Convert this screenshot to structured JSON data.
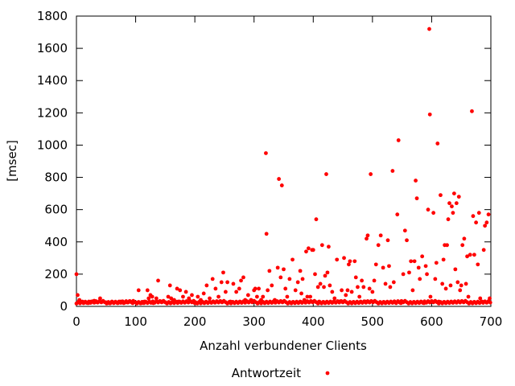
{
  "chart_data": {
    "type": "scatter",
    "xlabel": "Anzahl verbundener Clients",
    "ylabel": "[msec]",
    "xlim": [
      0,
      700
    ],
    "ylim": [
      0,
      1800
    ],
    "x_ticks": [
      0,
      100,
      200,
      300,
      400,
      500,
      600,
      700
    ],
    "y_ticks": [
      0,
      200,
      400,
      600,
      800,
      1000,
      1200,
      1400,
      1600,
      1800
    ],
    "grid": false,
    "legend_position": "bottom-center",
    "colors": {
      "series": "#ff0000",
      "axis": "#000000"
    },
    "series": [
      {
        "name": "Antwortzeit",
        "points": [
          [
            0,
            200
          ],
          [
            2,
            70
          ],
          [
            5,
            40
          ],
          [
            10,
            30
          ],
          [
            15,
            25
          ],
          [
            20,
            20
          ],
          [
            25,
            30
          ],
          [
            30,
            35
          ],
          [
            35,
            25
          ],
          [
            40,
            50
          ],
          [
            45,
            30
          ],
          [
            50,
            25
          ],
          [
            55,
            20
          ],
          [
            60,
            30
          ],
          [
            65,
            25
          ],
          [
            70,
            20
          ],
          [
            75,
            30
          ],
          [
            80,
            20
          ],
          [
            85,
            25
          ],
          [
            90,
            30
          ],
          [
            95,
            20
          ],
          [
            100,
            25
          ],
          [
            105,
            100
          ],
          [
            110,
            20
          ],
          [
            115,
            30
          ],
          [
            120,
            100
          ],
          [
            122,
            50
          ],
          [
            125,
            70
          ],
          [
            128,
            60
          ],
          [
            130,
            20
          ],
          [
            135,
            50
          ],
          [
            138,
            160
          ],
          [
            140,
            30
          ],
          [
            145,
            30
          ],
          [
            150,
            25
          ],
          [
            155,
            60
          ],
          [
            158,
            130
          ],
          [
            160,
            50
          ],
          [
            165,
            40
          ],
          [
            170,
            110
          ],
          [
            172,
            30
          ],
          [
            175,
            100
          ],
          [
            180,
            60
          ],
          [
            185,
            90
          ],
          [
            190,
            50
          ],
          [
            195,
            70
          ],
          [
            200,
            20
          ],
          [
            205,
            60
          ],
          [
            210,
            40
          ],
          [
            215,
            80
          ],
          [
            220,
            130
          ],
          [
            225,
            50
          ],
          [
            230,
            170
          ],
          [
            235,
            110
          ],
          [
            240,
            60
          ],
          [
            245,
            150
          ],
          [
            248,
            210
          ],
          [
            252,
            90
          ],
          [
            255,
            150
          ],
          [
            260,
            30
          ],
          [
            265,
            140
          ],
          [
            270,
            90
          ],
          [
            275,
            110
          ],
          [
            278,
            160
          ],
          [
            282,
            180
          ],
          [
            285,
            40
          ],
          [
            290,
            70
          ],
          [
            295,
            40
          ],
          [
            300,
            100
          ],
          [
            302,
            110
          ],
          [
            305,
            60
          ],
          [
            308,
            110
          ],
          [
            312,
            40
          ],
          [
            315,
            60
          ],
          [
            320,
            950
          ],
          [
            321,
            450
          ],
          [
            323,
            100
          ],
          [
            326,
            220
          ],
          [
            330,
            130
          ],
          [
            335,
            40
          ],
          [
            340,
            240
          ],
          [
            342,
            790
          ],
          [
            345,
            180
          ],
          [
            347,
            750
          ],
          [
            350,
            230
          ],
          [
            353,
            110
          ],
          [
            356,
            60
          ],
          [
            360,
            170
          ],
          [
            365,
            290
          ],
          [
            370,
            100
          ],
          [
            374,
            150
          ],
          [
            378,
            220
          ],
          [
            380,
            80
          ],
          [
            382,
            170
          ],
          [
            385,
            40
          ],
          [
            388,
            340
          ],
          [
            390,
            60
          ],
          [
            392,
            360
          ],
          [
            395,
            60
          ],
          [
            398,
            350
          ],
          [
            400,
            350
          ],
          [
            403,
            200
          ],
          [
            405,
            540
          ],
          [
            408,
            120
          ],
          [
            410,
            30
          ],
          [
            412,
            140
          ],
          [
            415,
            380
          ],
          [
            418,
            120
          ],
          [
            420,
            190
          ],
          [
            422,
            820
          ],
          [
            424,
            210
          ],
          [
            426,
            370
          ],
          [
            428,
            130
          ],
          [
            432,
            90
          ],
          [
            436,
            50
          ],
          [
            440,
            290
          ],
          [
            444,
            30
          ],
          [
            448,
            100
          ],
          [
            452,
            300
          ],
          [
            455,
            70
          ],
          [
            458,
            100
          ],
          [
            460,
            260
          ],
          [
            462,
            280
          ],
          [
            465,
            90
          ],
          [
            470,
            280
          ],
          [
            472,
            180
          ],
          [
            475,
            120
          ],
          [
            478,
            60
          ],
          [
            482,
            160
          ],
          [
            485,
            120
          ],
          [
            488,
            30
          ],
          [
            490,
            420
          ],
          [
            492,
            440
          ],
          [
            495,
            110
          ],
          [
            497,
            820
          ],
          [
            500,
            90
          ],
          [
            503,
            160
          ],
          [
            506,
            260
          ],
          [
            510,
            380
          ],
          [
            514,
            440
          ],
          [
            518,
            240
          ],
          [
            522,
            140
          ],
          [
            526,
            410
          ],
          [
            528,
            250
          ],
          [
            530,
            120
          ],
          [
            534,
            840
          ],
          [
            536,
            150
          ],
          [
            540,
            20
          ],
          [
            542,
            570
          ],
          [
            544,
            1030
          ],
          [
            548,
            20
          ],
          [
            552,
            200
          ],
          [
            555,
            470
          ],
          [
            558,
            410
          ],
          [
            562,
            210
          ],
          [
            565,
            280
          ],
          [
            568,
            100
          ],
          [
            571,
            280
          ],
          [
            573,
            780
          ],
          [
            575,
            670
          ],
          [
            578,
            240
          ],
          [
            580,
            170
          ],
          [
            584,
            310
          ],
          [
            587,
            20
          ],
          [
            590,
            250
          ],
          [
            592,
            200
          ],
          [
            594,
            600
          ],
          [
            596,
            1720
          ],
          [
            597,
            1190
          ],
          [
            598,
            60
          ],
          [
            600,
            30
          ],
          [
            603,
            580
          ],
          [
            606,
            170
          ],
          [
            608,
            270
          ],
          [
            610,
            1010
          ],
          [
            612,
            30
          ],
          [
            615,
            690
          ],
          [
            618,
            140
          ],
          [
            620,
            290
          ],
          [
            622,
            380
          ],
          [
            624,
            110
          ],
          [
            626,
            380
          ],
          [
            628,
            540
          ],
          [
            630,
            640
          ],
          [
            632,
            130
          ],
          [
            634,
            620
          ],
          [
            636,
            580
          ],
          [
            638,
            700
          ],
          [
            640,
            230
          ],
          [
            642,
            640
          ],
          [
            644,
            150
          ],
          [
            646,
            680
          ],
          [
            648,
            100
          ],
          [
            650,
            130
          ],
          [
            652,
            380
          ],
          [
            655,
            420
          ],
          [
            658,
            140
          ],
          [
            660,
            310
          ],
          [
            662,
            60
          ],
          [
            665,
            320
          ],
          [
            668,
            1210
          ],
          [
            670,
            560
          ],
          [
            672,
            320
          ],
          [
            675,
            520
          ],
          [
            678,
            260
          ],
          [
            680,
            580
          ],
          [
            682,
            50
          ],
          [
            685,
            30
          ],
          [
            688,
            350
          ],
          [
            690,
            500
          ],
          [
            693,
            520
          ],
          [
            696,
            570
          ],
          [
            698,
            50
          ]
        ]
      }
    ]
  }
}
